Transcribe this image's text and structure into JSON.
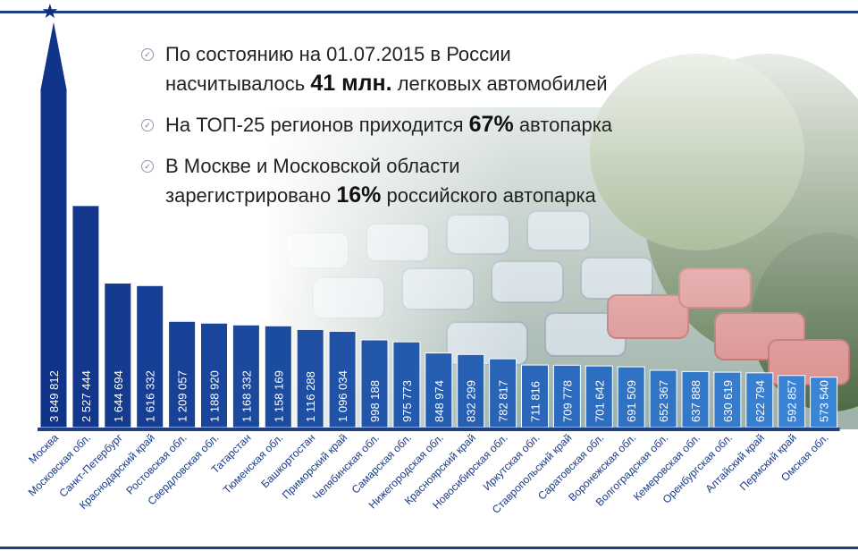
{
  "facts": [
    {
      "lines": [
        [
          "По состоянию на 01.07.2015 в России",
          ""
        ],
        [
          "насчитывалось ",
          "41 млн.",
          " легковых автомобилей"
        ]
      ]
    },
    {
      "lines": [
        [
          "На ТОП-25 регионов приходится ",
          "67%",
          " автопарка"
        ]
      ]
    },
    {
      "lines": [
        [
          "В Москве и Московской области",
          ""
        ],
        [
          "зарегистрировано ",
          "16%",
          " российского автопарка"
        ]
      ]
    }
  ],
  "colors": {
    "bar_dark": "#10348a",
    "bar_light": "#3a86d6",
    "accent": "#1f3f86"
  },
  "icons": {
    "star": "star-icon",
    "check": "check-circle-icon"
  },
  "chart_data": {
    "type": "bar",
    "categories": [
      "Москва",
      "Московская обл.",
      "Санкт-Петербург",
      "Краснодарский край",
      "Ростовская обл.",
      "Свердловская обл.",
      "Татарстан",
      "Тюменская обл.",
      "Башкортостан",
      "Приморский край",
      "Челябинская обл.",
      "Самарская обл.",
      "Нижегородская обл.",
      "Красноярский край",
      "Новосибирская обл.",
      "Иркутская обл.",
      "Ставропольский край",
      "Саратовская обл.",
      "Воронежская обл.",
      "Волгоградская обл.",
      "Кемеровская обл.",
      "Оренбургская обл.",
      "Алтайский край",
      "Пермский край",
      "Омская обл."
    ],
    "values": [
      3849812,
      2527444,
      1644694,
      1616332,
      1209057,
      1188920,
      1168332,
      1158169,
      1116288,
      1096034,
      998188,
      975773,
      848974,
      832299,
      782817,
      711816,
      709778,
      701642,
      691509,
      652367,
      637888,
      630619,
      622794,
      592857,
      573540
    ],
    "value_labels": [
      "3 849 812",
      "2 527 444",
      "1 644 694",
      "1 616 332",
      "1 209 057",
      "1 188 920",
      "1 168 332",
      "1 158 169",
      "1 116 288",
      "1 096 034",
      "998 188",
      "975 773",
      "848 974",
      "832 299",
      "782 817",
      "711 816",
      "709 778",
      "701 642",
      "691 509",
      "652 367",
      "637 888",
      "630 619",
      "622 794",
      "592 857",
      "573 540"
    ],
    "title": "",
    "xlabel": "",
    "ylabel": "",
    "ylim": [
      0,
      3849812
    ],
    "grid": false,
    "legend": "none"
  }
}
